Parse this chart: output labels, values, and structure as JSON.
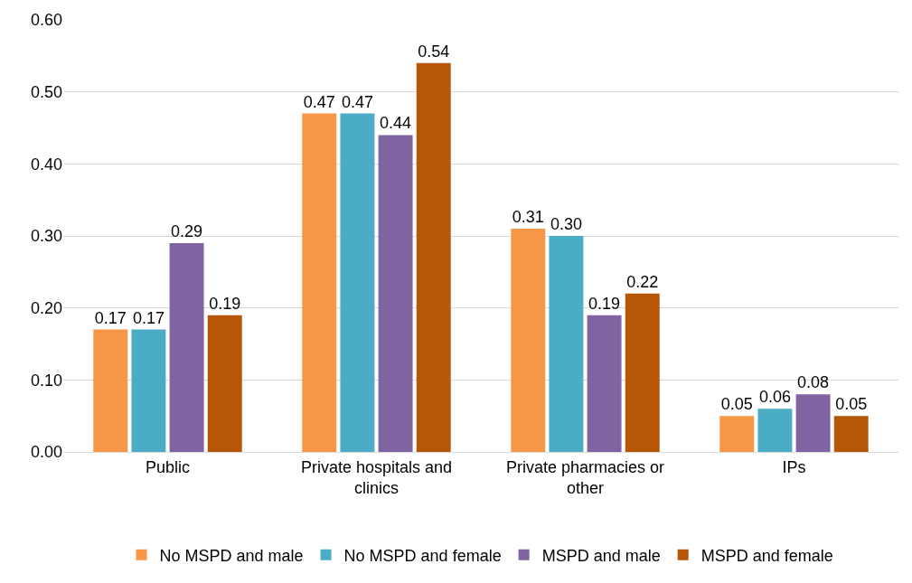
{
  "chart_data": {
    "type": "bar",
    "categories": [
      "Public",
      "Private hospitals and clinics",
      "Private pharmacies or other",
      "IPs"
    ],
    "series": [
      {
        "name": "No MSPD and male",
        "color": "#f79646",
        "values": [
          0.17,
          0.47,
          0.31,
          0.05
        ],
        "value_labels": [
          "0.17",
          "0.47",
          "0.31",
          "0.05"
        ]
      },
      {
        "name": "No MSPD and female",
        "color": "#4bacc6",
        "values": [
          0.17,
          0.47,
          0.3,
          0.06
        ],
        "value_labels": [
          "0.17",
          "0.47",
          "0.30",
          "0.06"
        ]
      },
      {
        "name": "MSPD and male",
        "color": "#8064a2",
        "values": [
          0.29,
          0.44,
          0.19,
          0.08
        ],
        "value_labels": [
          "0.29",
          "0.44",
          "0.19",
          "0.08"
        ]
      },
      {
        "name": "MSPD and female",
        "color": "#b65708",
        "values": [
          0.19,
          0.54,
          0.22,
          0.05
        ],
        "value_labels": [
          "0.19",
          "0.54",
          "0.22",
          "0.05"
        ]
      }
    ],
    "ylim": [
      0,
      0.6
    ],
    "yticks": [
      {
        "value": 0,
        "label": "0.00"
      },
      {
        "value": 0.1,
        "label": "0.10"
      },
      {
        "value": 0.2,
        "label": "0.20"
      },
      {
        "value": 0.3,
        "label": "0.30"
      },
      {
        "value": 0.4,
        "label": "0.40"
      },
      {
        "value": 0.5,
        "label": "0.50"
      },
      {
        "value": 0.6,
        "label": "0.60"
      }
    ],
    "grid": "y",
    "legend": "bottom"
  }
}
